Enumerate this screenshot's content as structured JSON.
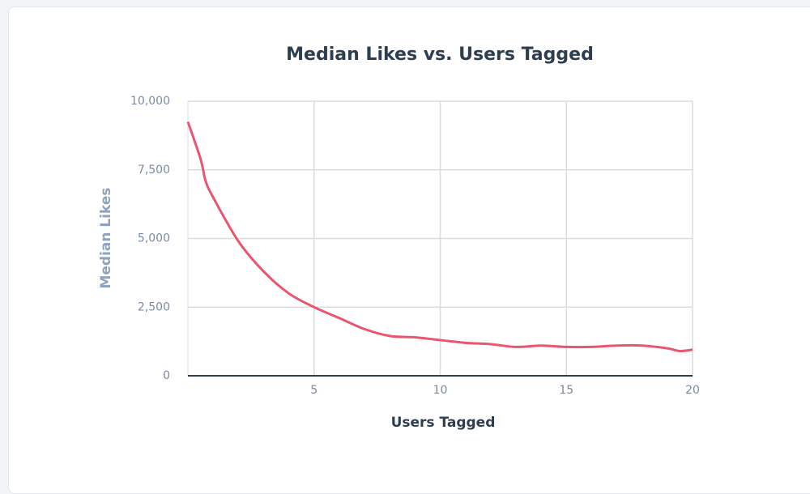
{
  "chart_data": {
    "type": "line",
    "title": "Median Likes vs. Users Tagged",
    "xlabel": "Users Tagged",
    "ylabel": "Median Likes",
    "x": [
      0,
      0.5,
      0.7,
      1,
      2,
      3,
      4,
      5,
      6,
      7,
      8,
      9,
      10,
      11,
      12,
      13,
      14,
      15,
      16,
      17,
      18,
      19,
      19.5,
      20
    ],
    "series": [
      {
        "name": "Median Likes",
        "color": "#e9566f",
        "values": [
          9250,
          7900,
          7100,
          6500,
          4900,
          3800,
          3000,
          2500,
          2100,
          1700,
          1450,
          1400,
          1300,
          1200,
          1150,
          1050,
          1100,
          1050,
          1050,
          1100,
          1100,
          1000,
          900,
          950
        ]
      }
    ],
    "xlim": [
      0,
      20
    ],
    "xticks": [
      5,
      10,
      15,
      20
    ],
    "ylim": [
      0,
      10000
    ],
    "yticks": [
      0,
      {
        "value": 2500,
        "label": "2,500"
      },
      {
        "value": 5000,
        "label": "5,000"
      },
      {
        "value": 7500,
        "label": "7,500"
      },
      {
        "value": 10000,
        "label": "10,000"
      }
    ],
    "grid": true
  }
}
